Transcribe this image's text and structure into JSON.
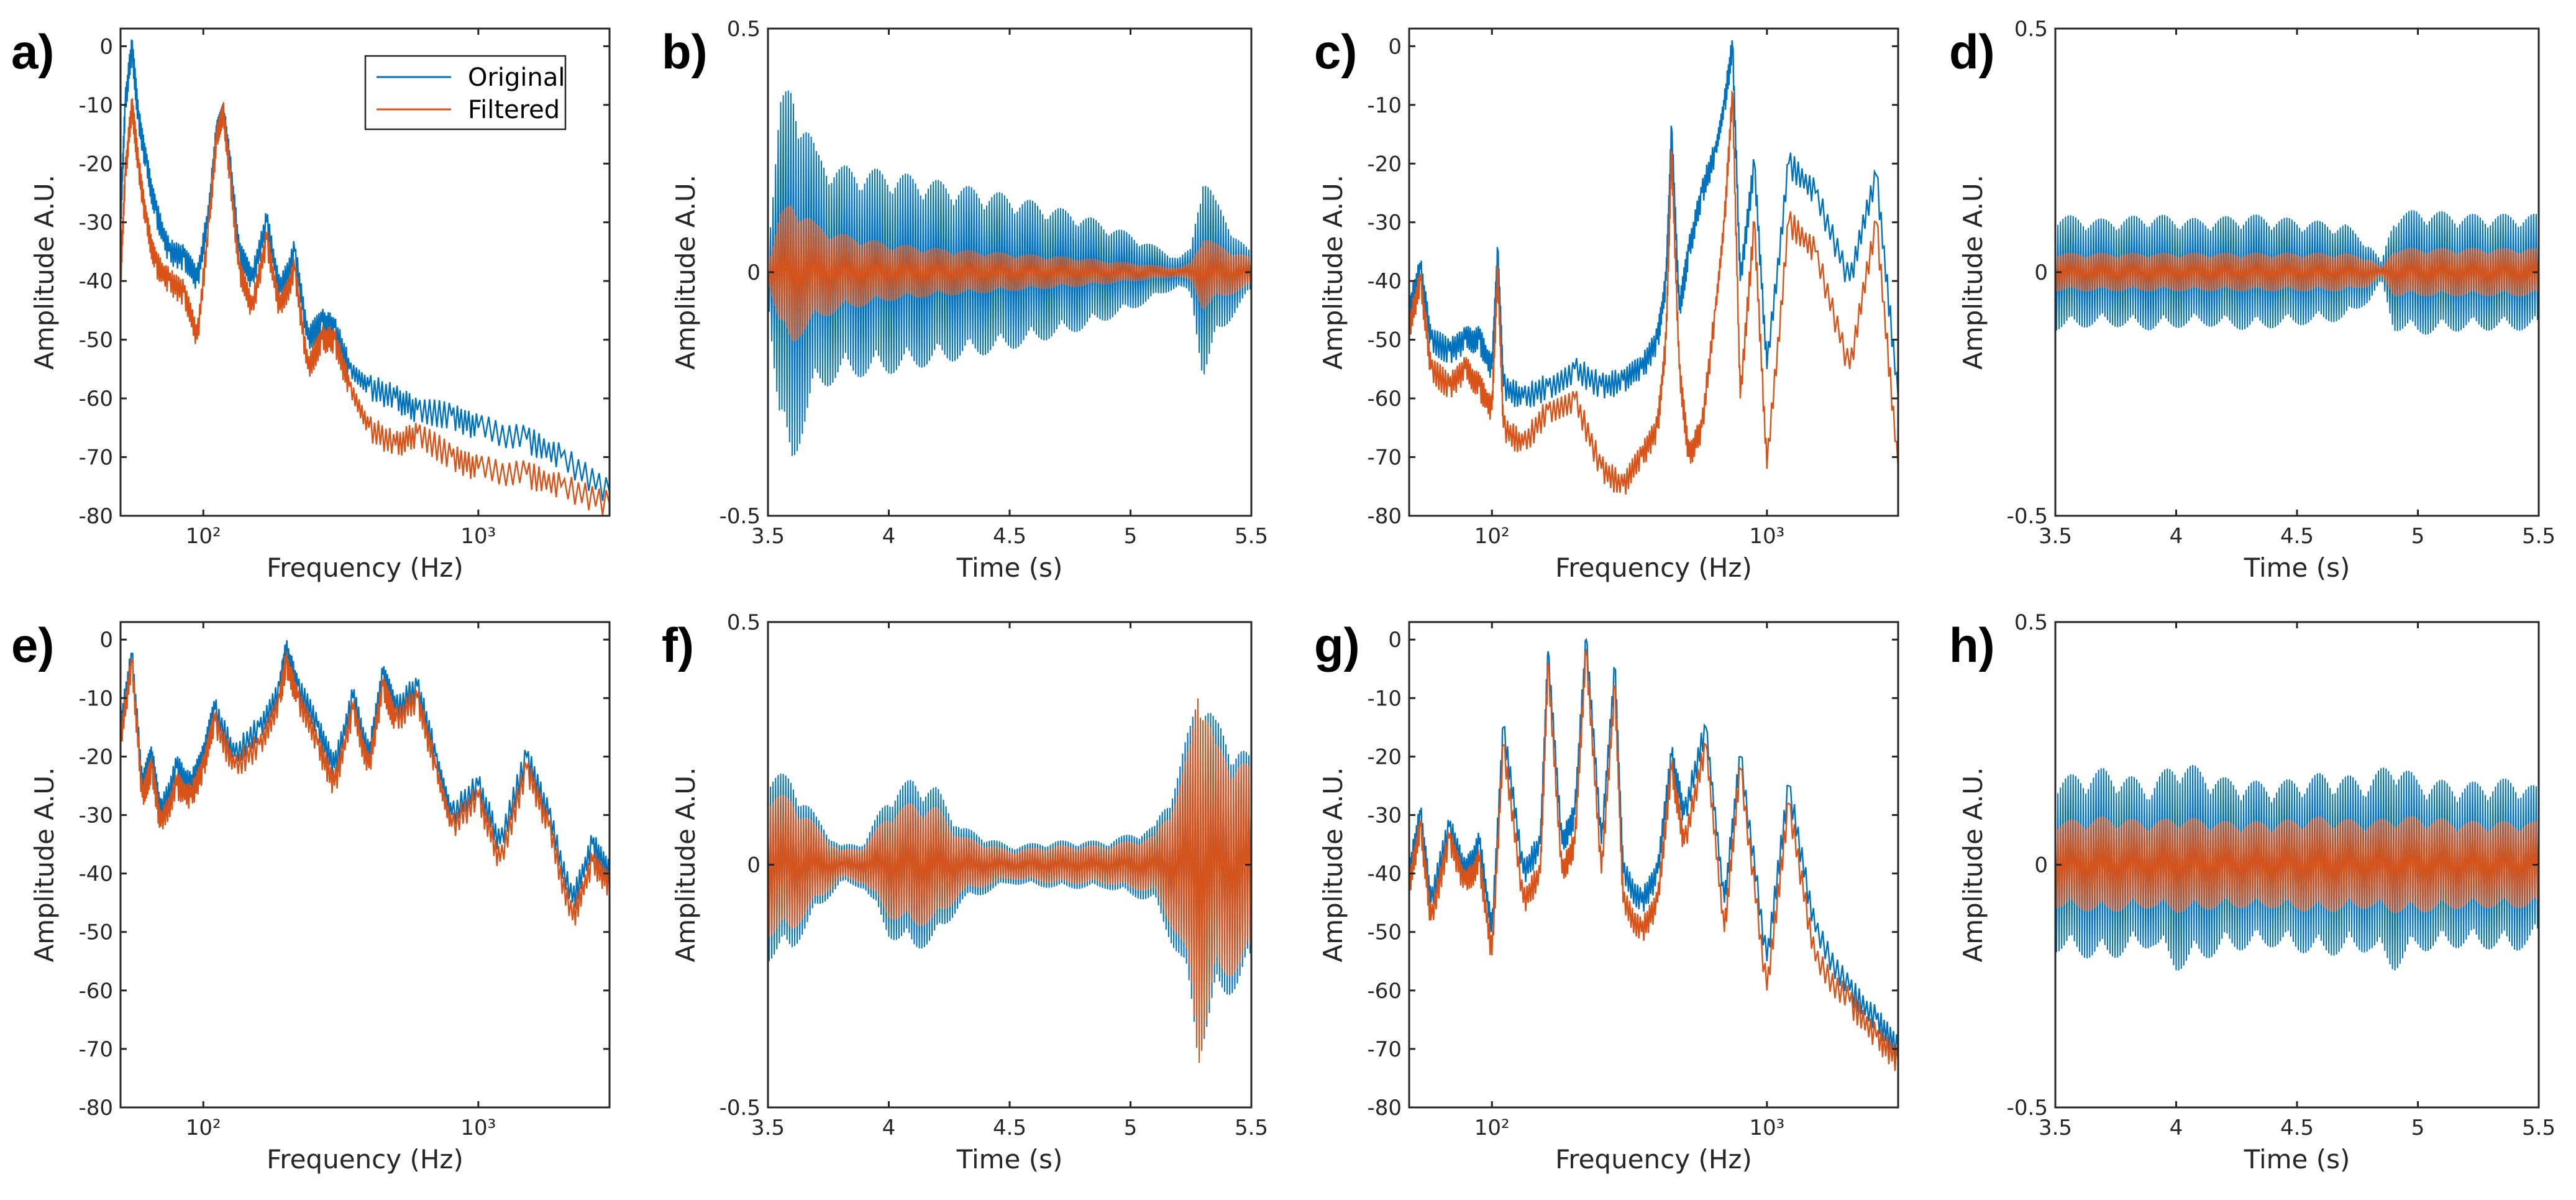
{
  "colors": {
    "original": "#0072BD",
    "filtered": "#D95319"
  },
  "legend": {
    "entries": [
      "Original",
      "Filtered"
    ],
    "panel": "a",
    "placement": "top-right"
  },
  "chart_data": [
    {
      "id": "a",
      "label": "a)",
      "type": "line",
      "xscale": "log",
      "xlabel": "Frequency (Hz)",
      "ylabel": "Amplitude A.U.",
      "xlim": [
        50,
        3000
      ],
      "ylim": [
        -80,
        3
      ],
      "yticks": [
        0,
        -10,
        -20,
        -30,
        -40,
        -50,
        -60,
        -70,
        -80
      ],
      "yticklabels": [
        "0",
        "-10",
        "-20",
        "-30",
        "-40",
        "-50",
        "-60",
        "-70",
        "-80"
      ],
      "xticks": [
        100,
        1000
      ],
      "xticklabels": [
        "10²",
        "10³"
      ],
      "series": [
        {
          "name": "Original",
          "x": [
            50,
            52,
            55,
            58,
            62,
            67,
            75,
            85,
            95,
            105,
            112,
            118,
            125,
            135,
            150,
            170,
            190,
            215,
            240,
            270,
            300,
            340,
            400,
            500,
            600,
            800,
            1000,
            1500,
            2000,
            3000
          ],
          "y": [
            -30,
            -10,
            0,
            -12,
            -20,
            -28,
            -35,
            -36,
            -40,
            -28,
            -14,
            -11,
            -20,
            -35,
            -40,
            -30,
            -42,
            -35,
            -50,
            -47,
            -48,
            -55,
            -58,
            -60,
            -62,
            -63,
            -65,
            -67,
            -70,
            -76
          ]
        },
        {
          "name": "Filtered",
          "x": [
            50,
            52,
            55,
            58,
            62,
            67,
            75,
            85,
            95,
            105,
            112,
            118,
            125,
            135,
            150,
            170,
            190,
            215,
            240,
            270,
            300,
            340,
            400,
            500,
            600,
            800,
            1000,
            1500,
            2000,
            3000
          ],
          "y": [
            -40,
            -22,
            -10,
            -20,
            -30,
            -37,
            -40,
            -42,
            -50,
            -30,
            -15,
            -11,
            -22,
            -38,
            -45,
            -33,
            -45,
            -38,
            -55,
            -50,
            -50,
            -58,
            -65,
            -68,
            -66,
            -70,
            -72,
            -73,
            -75,
            -78
          ]
        }
      ]
    },
    {
      "id": "b",
      "label": "b)",
      "type": "line",
      "xscale": "linear",
      "xlabel": "Time (s)",
      "ylabel": "Amplitude A.U.",
      "xlim": [
        3.5,
        5.5
      ],
      "ylim": [
        -0.5,
        0.5
      ],
      "yticks": [
        -0.5,
        0,
        0.5
      ],
      "yticklabels": [
        "-0.5",
        "0",
        "0.5"
      ],
      "xticks": [
        3.5,
        4,
        4.5,
        5,
        5.5
      ],
      "xticklabels": [
        "3.5",
        "4",
        "4.5",
        "5",
        "5.5"
      ],
      "series": [
        {
          "name": "Original",
          "x": [
            3.5,
            3.55,
            3.6,
            3.7,
            3.8,
            4.0,
            4.2,
            4.5,
            4.8,
            5.0,
            5.2,
            5.25,
            5.3,
            5.35,
            5.45,
            5.5
          ],
          "y": [
            0.05,
            0.35,
            0.4,
            0.25,
            0.22,
            0.21,
            0.19,
            0.16,
            0.12,
            0.08,
            0.03,
            0.05,
            0.22,
            0.15,
            0.07,
            0.04
          ]
        },
        {
          "name": "Filtered",
          "x": [
            3.5,
            3.55,
            3.6,
            3.7,
            3.8,
            4.0,
            4.2,
            4.5,
            4.8,
            5.0,
            5.2,
            5.25,
            5.3,
            5.35,
            5.45,
            5.5
          ],
          "y": [
            0.02,
            0.12,
            0.15,
            0.1,
            0.08,
            0.06,
            0.05,
            0.04,
            0.03,
            0.02,
            0.01,
            0.02,
            0.08,
            0.06,
            0.04,
            0.03
          ]
        }
      ]
    },
    {
      "id": "c",
      "label": "c)",
      "type": "line",
      "xscale": "log",
      "xlabel": "Frequency (Hz)",
      "ylabel": "Amplitude A.U.",
      "xlim": [
        50,
        3000
      ],
      "ylim": [
        -80,
        3
      ],
      "yticks": [
        0,
        -10,
        -20,
        -30,
        -40,
        -50,
        -60,
        -70,
        -80
      ],
      "yticklabels": [
        "0",
        "-10",
        "-20",
        "-30",
        "-40",
        "-50",
        "-60",
        "-70",
        "-80"
      ],
      "xticks": [
        100,
        1000
      ],
      "xticklabels": [
        "10²",
        "10³"
      ],
      "series": [
        {
          "name": "Original",
          "x": [
            50,
            55,
            60,
            70,
            80,
            90,
            100,
            105,
            110,
            130,
            160,
            200,
            250,
            300,
            350,
            400,
            430,
            450,
            480,
            520,
            580,
            650,
            700,
            750,
            800,
            900,
            1000,
            1200,
            1500,
            2000,
            2500,
            3000
          ],
          "y": [
            -45,
            -38,
            -50,
            -52,
            -50,
            -50,
            -55,
            -35,
            -58,
            -60,
            -58,
            -55,
            -58,
            -57,
            -55,
            -50,
            -40,
            -14,
            -45,
            -35,
            -25,
            -18,
            -10,
            0,
            -40,
            -20,
            -55,
            -20,
            -25,
            -40,
            -22,
            -60
          ]
        },
        {
          "name": "Filtered",
          "x": [
            50,
            55,
            60,
            70,
            80,
            90,
            100,
            105,
            110,
            130,
            160,
            200,
            250,
            300,
            350,
            400,
            430,
            450,
            480,
            520,
            580,
            650,
            700,
            750,
            800,
            900,
            1000,
            1200,
            1500,
            2000,
            2500,
            3000
          ],
          "y": [
            -48,
            -40,
            -55,
            -58,
            -55,
            -58,
            -62,
            -38,
            -65,
            -68,
            -62,
            -60,
            -72,
            -75,
            -70,
            -65,
            -50,
            -18,
            -55,
            -70,
            -65,
            -45,
            -30,
            -8,
            -60,
            -30,
            -72,
            -30,
            -35,
            -55,
            -30,
            -72
          ]
        }
      ]
    },
    {
      "id": "d",
      "label": "d)",
      "type": "line",
      "xscale": "linear",
      "xlabel": "Time (s)",
      "ylabel": "Amplitude A.U.",
      "xlim": [
        3.5,
        5.5
      ],
      "ylim": [
        -0.5,
        0.5
      ],
      "yticks": [
        -0.5,
        0,
        0.5
      ],
      "yticklabels": [
        "-0.5",
        "0",
        "0.5"
      ],
      "xticks": [
        3.5,
        4,
        4.5,
        5,
        5.5
      ],
      "xticklabels": [
        "3.5",
        "4",
        "4.5",
        "5",
        "5.5"
      ],
      "series": [
        {
          "name": "Original",
          "x": [
            3.5,
            3.7,
            3.9,
            4.1,
            4.3,
            4.5,
            4.7,
            4.8,
            4.85,
            4.9,
            5.0,
            5.2,
            5.4,
            5.5
          ],
          "y": [
            0.12,
            0.11,
            0.12,
            0.11,
            0.12,
            0.11,
            0.1,
            0.06,
            0.02,
            0.12,
            0.13,
            0.12,
            0.12,
            0.12
          ]
        },
        {
          "name": "Filtered",
          "x": [
            3.5,
            3.7,
            3.9,
            4.1,
            4.3,
            4.5,
            4.7,
            4.8,
            4.85,
            4.9,
            5.0,
            5.2,
            5.4,
            5.5
          ],
          "y": [
            0.04,
            0.04,
            0.04,
            0.04,
            0.04,
            0.04,
            0.04,
            0.03,
            0.01,
            0.05,
            0.05,
            0.05,
            0.05,
            0.05
          ]
        }
      ]
    },
    {
      "id": "e",
      "label": "e)",
      "type": "line",
      "xscale": "log",
      "xlabel": "Frequency (Hz)",
      "ylabel": "Amplitude A.U.",
      "xlim": [
        50,
        3000
      ],
      "ylim": [
        -80,
        3
      ],
      "yticks": [
        0,
        -10,
        -20,
        -30,
        -40,
        -50,
        -60,
        -70,
        -80
      ],
      "yticklabels": [
        "0",
        "-10",
        "-20",
        "-30",
        "-40",
        "-50",
        "-60",
        "-70",
        "-80"
      ],
      "xticks": [
        100,
        1000
      ],
      "xticklabels": [
        "10²",
        "10³"
      ],
      "series": [
        {
          "name": "Original",
          "x": [
            50,
            55,
            60,
            65,
            70,
            80,
            90,
            100,
            110,
            130,
            160,
            190,
            200,
            220,
            260,
            300,
            350,
            400,
            450,
            500,
            600,
            700,
            800,
            1000,
            1200,
            1500,
            1800,
            2200,
            2600,
            3000
          ],
          "y": [
            -15,
            -3,
            -25,
            -20,
            -30,
            -22,
            -25,
            -20,
            -12,
            -20,
            -15,
            -8,
            -2,
            -8,
            -15,
            -22,
            -10,
            -20,
            -6,
            -12,
            -8,
            -20,
            -30,
            -25,
            -35,
            -20,
            -30,
            -45,
            -35,
            -40
          ]
        },
        {
          "name": "Filtered",
          "x": [
            50,
            55,
            60,
            65,
            70,
            80,
            90,
            100,
            110,
            130,
            160,
            190,
            200,
            220,
            260,
            300,
            350,
            400,
            450,
            500,
            600,
            700,
            800,
            1000,
            1200,
            1500,
            1800,
            2200,
            2600,
            3000
          ],
          "y": [
            -17,
            -4,
            -27,
            -22,
            -32,
            -25,
            -27,
            -22,
            -14,
            -22,
            -18,
            -10,
            -4,
            -10,
            -18,
            -25,
            -12,
            -22,
            -8,
            -14,
            -10,
            -22,
            -32,
            -27,
            -38,
            -22,
            -32,
            -48,
            -38,
            -42
          ]
        }
      ]
    },
    {
      "id": "f",
      "label": "f)",
      "type": "line",
      "xscale": "linear",
      "xlabel": "Time (s)",
      "ylabel": "Amplitude A.U.",
      "xlim": [
        3.5,
        5.5
      ],
      "ylim": [
        -0.5,
        0.5
      ],
      "yticks": [
        -0.5,
        0,
        0.5
      ],
      "yticklabels": [
        "-0.5",
        "0",
        "0.5"
      ],
      "xticks": [
        3.5,
        4,
        4.5,
        5,
        5.5
      ],
      "xticklabels": [
        "3.5",
        "4",
        "4.5",
        "5",
        "5.5"
      ],
      "series": [
        {
          "name": "Original",
          "x": [
            3.5,
            3.6,
            3.7,
            3.8,
            3.9,
            4.0,
            4.1,
            4.2,
            4.3,
            4.5,
            4.7,
            4.9,
            5.1,
            5.2,
            5.25,
            5.28,
            5.35,
            5.45,
            5.5
          ],
          "y": [
            0.2,
            0.18,
            0.1,
            0.04,
            0.05,
            0.15,
            0.18,
            0.16,
            0.08,
            0.04,
            0.05,
            0.05,
            0.08,
            0.2,
            0.3,
            0.4,
            0.3,
            0.25,
            0.22
          ]
        },
        {
          "name": "Filtered",
          "x": [
            3.5,
            3.6,
            3.7,
            3.8,
            3.9,
            4.0,
            4.1,
            4.2,
            4.3,
            4.5,
            4.7,
            4.9,
            5.1,
            5.2,
            5.25,
            5.28,
            5.35,
            5.45,
            5.5
          ],
          "y": [
            0.15,
            0.14,
            0.08,
            0.03,
            0.04,
            0.11,
            0.13,
            0.12,
            0.06,
            0.03,
            0.04,
            0.04,
            0.06,
            0.16,
            0.26,
            0.42,
            0.25,
            0.22,
            0.2
          ]
        }
      ]
    },
    {
      "id": "g",
      "label": "g)",
      "type": "line",
      "xscale": "log",
      "xlabel": "Frequency (Hz)",
      "ylabel": "Amplitude A.U.",
      "xlim": [
        50,
        3000
      ],
      "ylim": [
        -80,
        3
      ],
      "yticks": [
        0,
        -10,
        -20,
        -30,
        -40,
        -50,
        -60,
        -70,
        -80
      ],
      "yticklabels": [
        "0",
        "-10",
        "-20",
        "-30",
        "-40",
        "-50",
        "-60",
        "-70",
        "-80"
      ],
      "xticks": [
        100,
        1000
      ],
      "xticklabels": [
        "10²",
        "10³"
      ],
      "series": [
        {
          "name": "Original",
          "x": [
            50,
            55,
            60,
            70,
            80,
            90,
            100,
            110,
            130,
            150,
            160,
            180,
            200,
            220,
            250,
            280,
            300,
            350,
            400,
            450,
            500,
            600,
            700,
            800,
            1000,
            1200,
            1500,
            2000,
            2500,
            3000
          ],
          "y": [
            -40,
            -30,
            -45,
            -32,
            -40,
            -35,
            -50,
            -15,
            -40,
            -35,
            -2,
            -35,
            -30,
            0,
            -35,
            -5,
            -40,
            -45,
            -40,
            -20,
            -30,
            -15,
            -45,
            -20,
            -55,
            -25,
            -50,
            -60,
            -65,
            -70
          ]
        },
        {
          "name": "Filtered",
          "x": [
            50,
            55,
            60,
            70,
            80,
            90,
            100,
            110,
            130,
            150,
            160,
            180,
            200,
            220,
            250,
            280,
            300,
            350,
            400,
            450,
            500,
            600,
            700,
            800,
            1000,
            1200,
            1500,
            2000,
            2500,
            3000
          ],
          "y": [
            -42,
            -32,
            -48,
            -34,
            -42,
            -38,
            -54,
            -18,
            -45,
            -40,
            -4,
            -40,
            -35,
            -2,
            -40,
            -8,
            -45,
            -50,
            -45,
            -22,
            -35,
            -18,
            -50,
            -22,
            -60,
            -28,
            -55,
            -62,
            -68,
            -72
          ]
        }
      ]
    },
    {
      "id": "h",
      "label": "h)",
      "type": "line",
      "xscale": "linear",
      "xlabel": "Time (s)",
      "ylabel": "Amplitude A.U.",
      "xlim": [
        3.5,
        5.5
      ],
      "ylim": [
        -0.5,
        0.5
      ],
      "yticks": [
        -0.5,
        0,
        0.5
      ],
      "yticklabels": [
        "-0.5",
        "0",
        "0.5"
      ],
      "xticks": [
        3.5,
        4,
        4.5,
        5,
        5.5
      ],
      "xticklabels": [
        "3.5",
        "4",
        "4.5",
        "5",
        "5.5"
      ],
      "series": [
        {
          "name": "Original",
          "x": [
            3.5,
            3.7,
            3.9,
            4.0,
            4.2,
            4.4,
            4.6,
            4.8,
            4.9,
            5.0,
            5.2,
            5.4,
            5.5
          ],
          "y": [
            0.18,
            0.2,
            0.17,
            0.22,
            0.18,
            0.17,
            0.19,
            0.18,
            0.22,
            0.18,
            0.17,
            0.18,
            0.16
          ]
        },
        {
          "name": "Filtered",
          "x": [
            3.5,
            3.7,
            3.9,
            4.0,
            4.2,
            4.4,
            4.6,
            4.8,
            4.9,
            5.0,
            5.2,
            5.4,
            5.5
          ],
          "y": [
            0.09,
            0.1,
            0.09,
            0.1,
            0.09,
            0.09,
            0.1,
            0.09,
            0.1,
            0.1,
            0.09,
            0.09,
            0.09
          ]
        }
      ]
    }
  ]
}
